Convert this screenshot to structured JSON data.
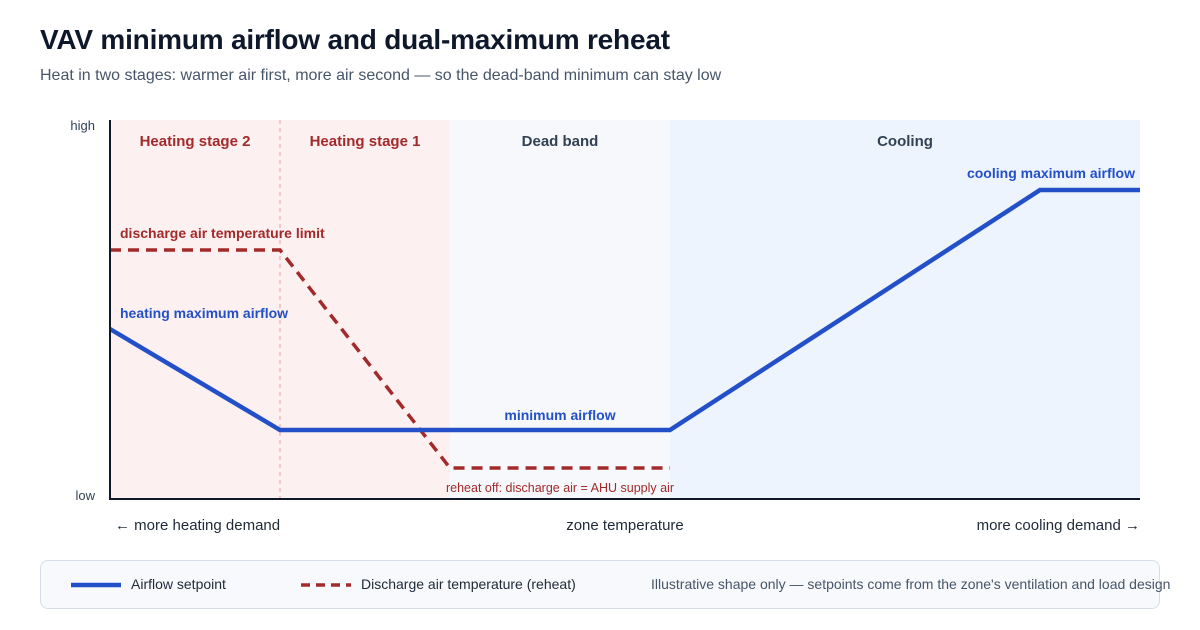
{
  "title": "VAV minimum airflow and dual-maximum reheat",
  "subtitle": "Heat in two stages: warmer air first, more air second — so the dead-band minimum can stay low",
  "colors": {
    "airflow": "#2350c8",
    "discharge": "#a32a2a",
    "heating_band": "#fdf0f0",
    "deadband_band": "#f6f8fb",
    "cooling_band": "#edf4fd"
  },
  "diagram": {
    "y_axis": {
      "high_label": "high",
      "low_label": "low"
    },
    "x_axis": {
      "left_label": "← more heating demand",
      "center_label": "zone temperature",
      "right_label": "more cooling demand →"
    },
    "bands": [
      {
        "label": "Heating stage 2",
        "kind": "heating"
      },
      {
        "label": "Heating stage 1",
        "kind": "heating"
      },
      {
        "label": "Dead band",
        "kind": "deadband"
      },
      {
        "label": "Cooling",
        "kind": "cooling"
      }
    ],
    "annotations": {
      "cooling_max": "cooling maximum airflow",
      "discharge_limit": "discharge air temperature limit",
      "heating_max": "heating maximum airflow",
      "minimum": "minimum airflow",
      "reheat_off": "reheat off: discharge air = AHU supply air"
    }
  },
  "legend": {
    "airflow_label": "Airflow setpoint",
    "discharge_label": "Discharge air temperature (reheat)",
    "note": "Illustrative shape only — setpoints come from the zone's ventilation and load design"
  }
}
